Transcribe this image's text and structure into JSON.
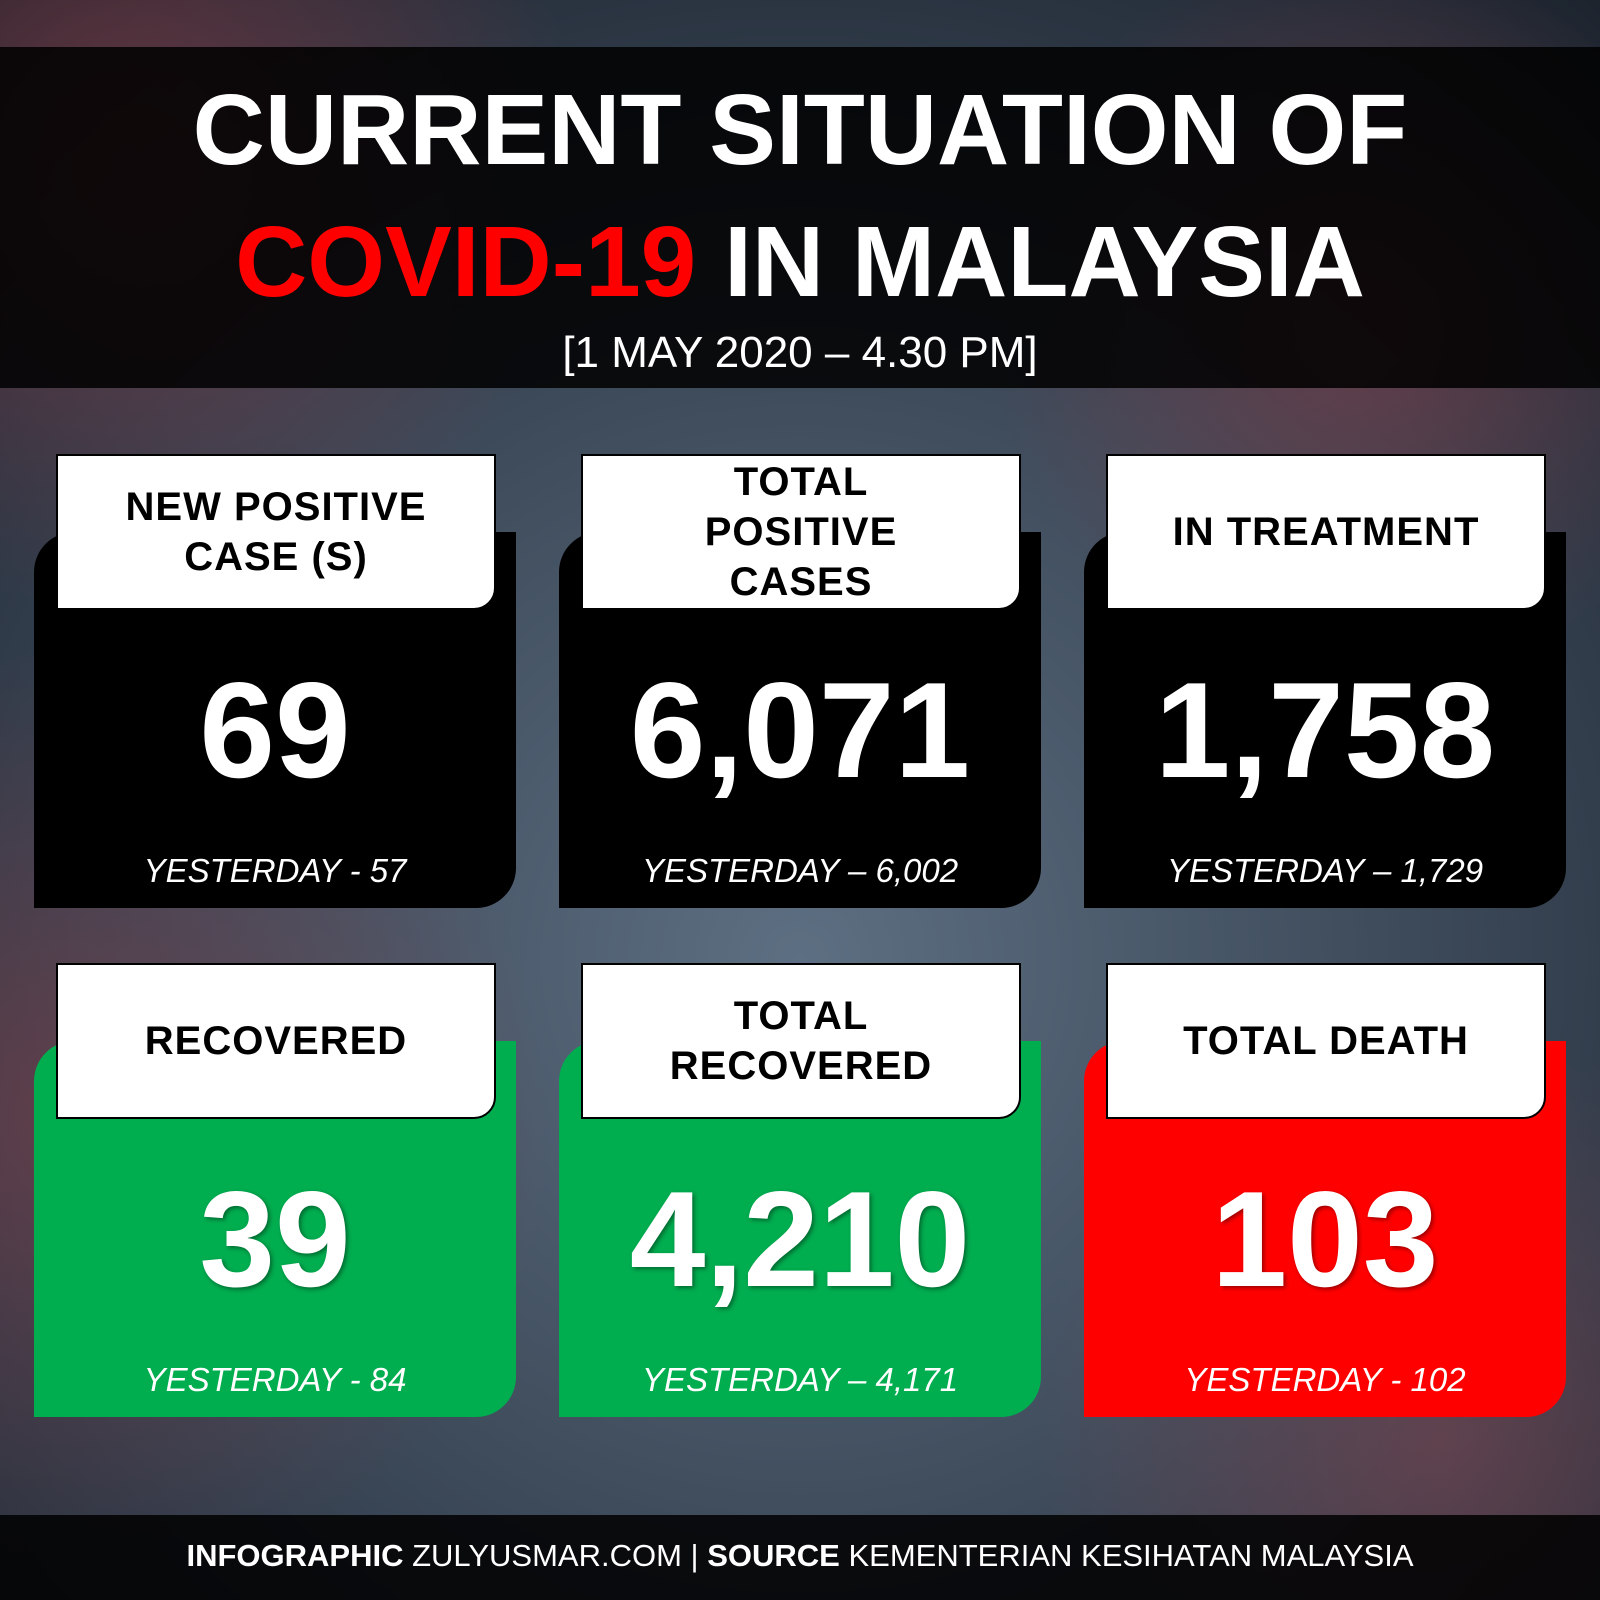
{
  "header": {
    "title_line1": "CURRENT SITUATION OF",
    "title_highlight": "COVID-19",
    "title_rest": "IN MALAYSIA",
    "date": "[1 MAY 2020 – 4.30 PM]"
  },
  "cards": [
    {
      "label": "NEW POSITIVE CASE (S)",
      "value": "69",
      "yesterday": "YESTERDAY - 57"
    },
    {
      "label": "TOTAL POSITIVE CASES",
      "value": "6,071",
      "yesterday": "YESTERDAY – 6,002"
    },
    {
      "label": "IN TREATMENT",
      "value": "1,758",
      "yesterday": "YESTERDAY – 1,729"
    },
    {
      "label": "RECOVERED",
      "value": "39",
      "yesterday": "YESTERDAY - 84"
    },
    {
      "label": "TOTAL RECOVERED",
      "value": "4,210",
      "yesterday": "YESTERDAY – 4,171"
    },
    {
      "label": "TOTAL DEATH",
      "value": "103",
      "yesterday": "YESTERDAY - 102"
    }
  ],
  "footer": {
    "label1": "INFOGRAPHIC",
    "text1": "ZULYUSMAR.COM",
    "separator": "|",
    "label2": "SOURCE",
    "text2": "KEMENTERIAN KESIHATAN MALAYSIA"
  }
}
